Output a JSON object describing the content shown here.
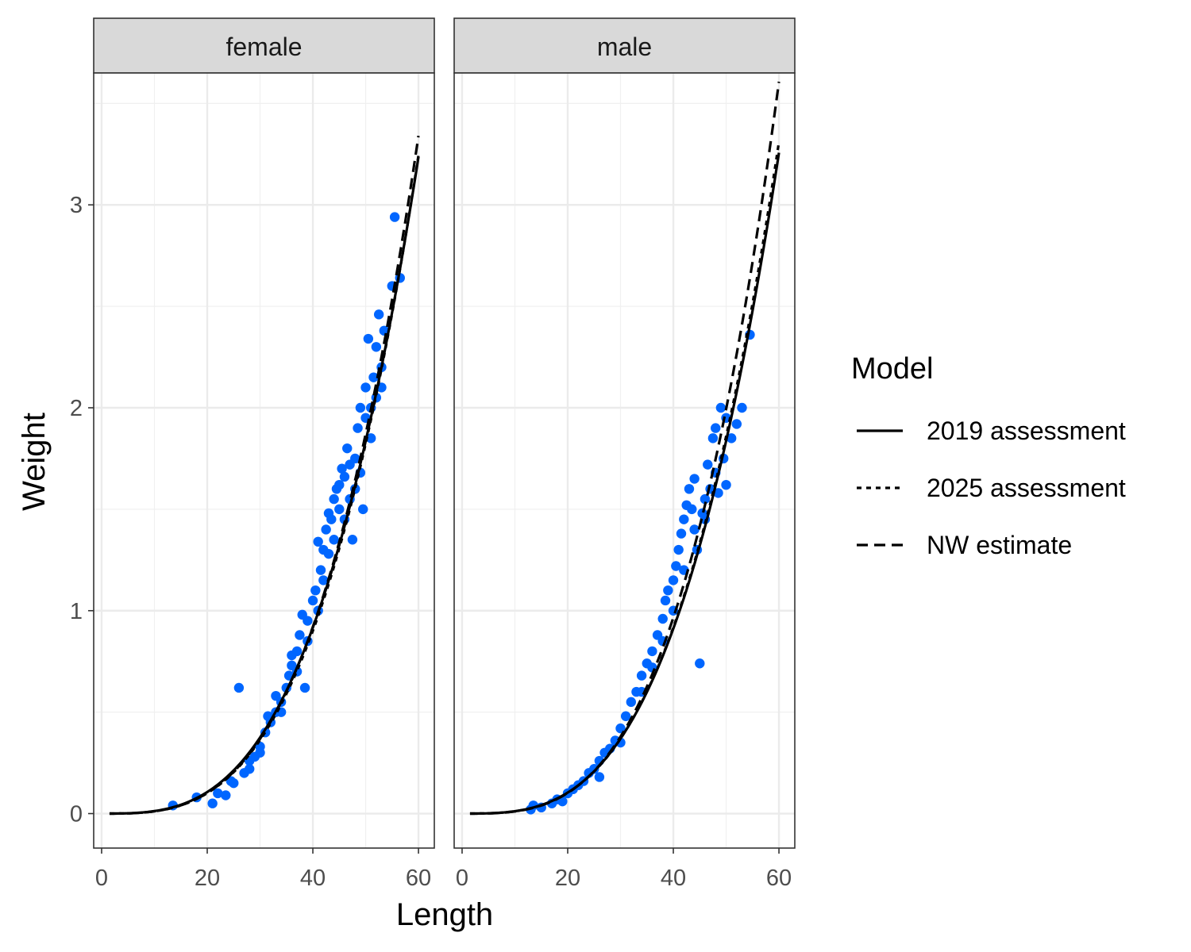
{
  "chart_data": {
    "type": "scatter",
    "xlabel": "Length",
    "ylabel": "Weight",
    "xlim": [
      -1.5,
      63
    ],
    "ylim": [
      -0.17,
      3.65
    ],
    "x_ticks": [
      0,
      20,
      40,
      60
    ],
    "y_ticks": [
      0,
      1,
      2,
      3
    ],
    "grid": true,
    "legend": {
      "title": "Model",
      "position": "right",
      "entries": [
        {
          "label": "2019 assessment",
          "linetype": "solid"
        },
        {
          "label": "2025 assessment",
          "linetype": "dotted"
        },
        {
          "label": "NW estimate",
          "linetype": "dashed"
        }
      ]
    },
    "point_color": "#0066ff",
    "line_color": "#000000",
    "panels": [
      {
        "label": "female",
        "x_range": [
          1.5,
          60
        ],
        "curves": {
          "2019 assessment": {
            "a": 9.55e-06,
            "b": 3.11
          },
          "2025 assessment": {
            "a": 7.8e-06,
            "b": 3.16
          },
          "NW estimate": {
            "a": 7.4e-06,
            "b": 3.18
          }
        },
        "points": [
          [
            13.5,
            0.04
          ],
          [
            18,
            0.08
          ],
          [
            21,
            0.05
          ],
          [
            22,
            0.1
          ],
          [
            23.5,
            0.09
          ],
          [
            24.5,
            0.16
          ],
          [
            26,
            0.62
          ],
          [
            27,
            0.2
          ],
          [
            28,
            0.26
          ],
          [
            29,
            0.28
          ],
          [
            30,
            0.33
          ],
          [
            31,
            0.4
          ],
          [
            31.5,
            0.48
          ],
          [
            32,
            0.45
          ],
          [
            33,
            0.5
          ],
          [
            34,
            0.55
          ],
          [
            35,
            0.62
          ],
          [
            35.5,
            0.68
          ],
          [
            36,
            0.73
          ],
          [
            37,
            0.8
          ],
          [
            37.5,
            0.88
          ],
          [
            38,
            0.98
          ],
          [
            38.5,
            0.62
          ],
          [
            39,
            0.95
          ],
          [
            40,
            1.05
          ],
          [
            40.5,
            1.1
          ],
          [
            41,
            1.34
          ],
          [
            41.5,
            1.2
          ],
          [
            42,
            1.3
          ],
          [
            42.5,
            1.4
          ],
          [
            43,
            1.28
          ],
          [
            43.5,
            1.45
          ],
          [
            44,
            1.55
          ],
          [
            44.5,
            1.6
          ],
          [
            45,
            1.5
          ],
          [
            45.5,
            1.7
          ],
          [
            46,
            1.66
          ],
          [
            46.5,
            1.8
          ],
          [
            47,
            1.55
          ],
          [
            47.5,
            1.35
          ],
          [
            48,
            1.75
          ],
          [
            48.5,
            1.9
          ],
          [
            49,
            2.0
          ],
          [
            49.5,
            1.5
          ],
          [
            50,
            2.1
          ],
          [
            50.5,
            2.34
          ],
          [
            51,
            1.85
          ],
          [
            51.5,
            2.15
          ],
          [
            52,
            2.3
          ],
          [
            52.5,
            2.46
          ],
          [
            53,
            2.2
          ],
          [
            53.5,
            2.38
          ],
          [
            55,
            2.6
          ],
          [
            55.5,
            2.94
          ],
          [
            56.5,
            2.64
          ],
          [
            34,
            0.5
          ],
          [
            36,
            0.78
          ],
          [
            39,
            0.85
          ],
          [
            42,
            1.15
          ],
          [
            44,
            1.35
          ],
          [
            46,
            1.45
          ],
          [
            47,
            1.72
          ],
          [
            49,
            1.68
          ],
          [
            51,
            2.0
          ],
          [
            30,
            0.3
          ],
          [
            28,
            0.22
          ],
          [
            25,
            0.15
          ],
          [
            33,
            0.58
          ],
          [
            37,
            0.7
          ],
          [
            41,
            1.0
          ],
          [
            43,
            1.48
          ],
          [
            45,
            1.62
          ],
          [
            48,
            1.6
          ],
          [
            50,
            1.95
          ],
          [
            52,
            2.05
          ],
          [
            53,
            2.1
          ]
        ]
      },
      {
        "label": "male",
        "x_range": [
          1.5,
          60
        ],
        "curves": {
          "2019 assessment": {
            "a": 8.5e-06,
            "b": 3.14
          },
          "2025 assessment": {
            "a": 7.8e-06,
            "b": 3.165
          },
          "NW estimate": {
            "a": 6e-06,
            "b": 3.25
          }
        },
        "points": [
          [
            13,
            0.02
          ],
          [
            13.5,
            0.04
          ],
          [
            15,
            0.03
          ],
          [
            17,
            0.05
          ],
          [
            18,
            0.07
          ],
          [
            19,
            0.06
          ],
          [
            20,
            0.1
          ],
          [
            21,
            0.12
          ],
          [
            22,
            0.14
          ],
          [
            23,
            0.16
          ],
          [
            24,
            0.2
          ],
          [
            25,
            0.22
          ],
          [
            26,
            0.26
          ],
          [
            27,
            0.3
          ],
          [
            28,
            0.32
          ],
          [
            29,
            0.36
          ],
          [
            30,
            0.42
          ],
          [
            31,
            0.48
          ],
          [
            32,
            0.55
          ],
          [
            33,
            0.6
          ],
          [
            34,
            0.68
          ],
          [
            35,
            0.74
          ],
          [
            36,
            0.8
          ],
          [
            37,
            0.88
          ],
          [
            38,
            0.96
          ],
          [
            38.5,
            1.05
          ],
          [
            39,
            1.1
          ],
          [
            40,
            1.15
          ],
          [
            40.5,
            1.22
          ],
          [
            41,
            1.3
          ],
          [
            41.5,
            1.38
          ],
          [
            42,
            1.45
          ],
          [
            42.5,
            1.52
          ],
          [
            43,
            1.6
          ],
          [
            43.5,
            1.5
          ],
          [
            44,
            1.65
          ],
          [
            44.5,
            1.3
          ],
          [
            45,
            0.74
          ],
          [
            45.5,
            1.48
          ],
          [
            46,
            1.55
          ],
          [
            46.5,
            1.72
          ],
          [
            47,
            1.6
          ],
          [
            47.5,
            1.85
          ],
          [
            48,
            1.68
          ],
          [
            48.5,
            1.58
          ],
          [
            49,
            2.0
          ],
          [
            49.5,
            1.75
          ],
          [
            50,
            1.62
          ],
          [
            51,
            1.85
          ],
          [
            52,
            1.92
          ],
          [
            53,
            2.0
          ],
          [
            54.5,
            2.36
          ],
          [
            26,
            0.18
          ],
          [
            30,
            0.35
          ],
          [
            34,
            0.6
          ],
          [
            36,
            0.72
          ],
          [
            38,
            0.85
          ],
          [
            40,
            1.0
          ],
          [
            42,
            1.2
          ],
          [
            44,
            1.4
          ],
          [
            46,
            1.45
          ],
          [
            48,
            1.9
          ],
          [
            50,
            1.95
          ]
        ]
      }
    ]
  }
}
